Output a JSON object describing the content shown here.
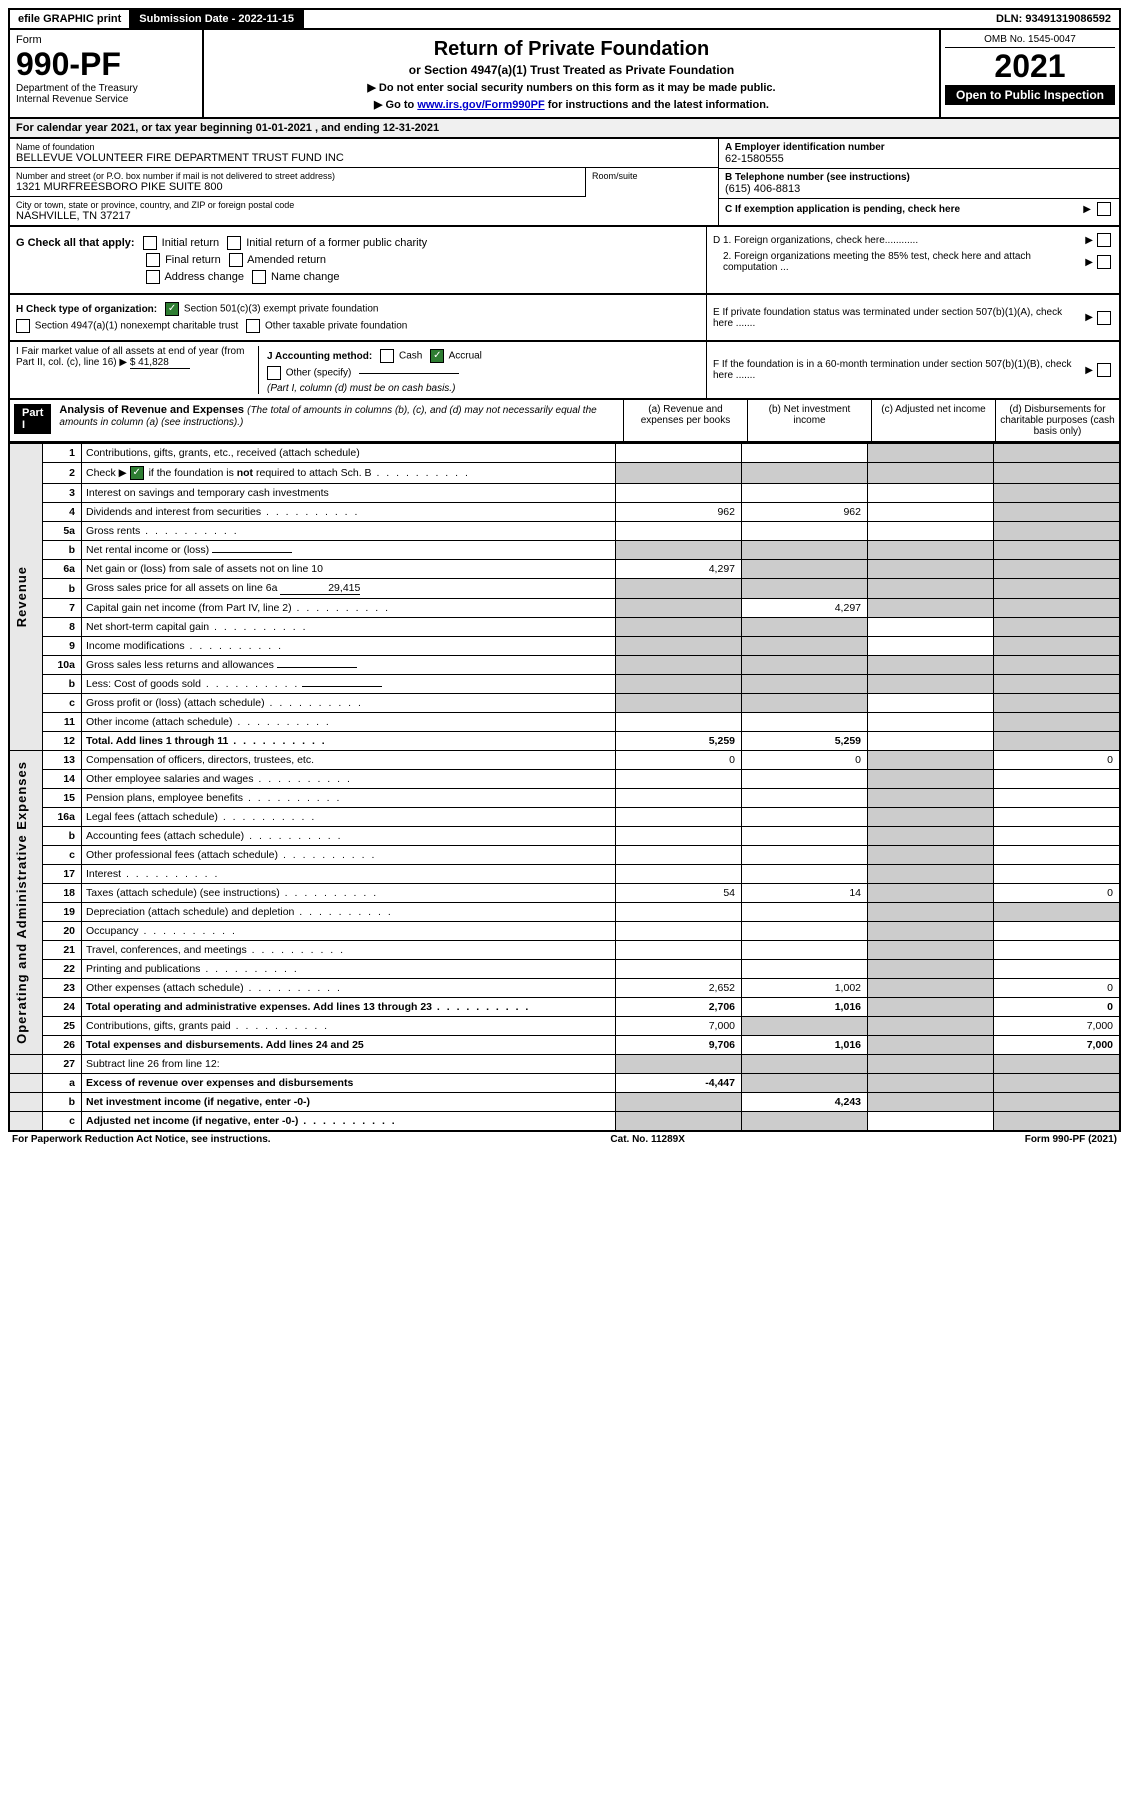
{
  "topbar": {
    "efile": "efile GRAPHIC print",
    "subdate_label": "Submission Date - ",
    "subdate": "2022-11-15",
    "dln_label": "DLN: ",
    "dln": "93491319086592"
  },
  "header": {
    "form_word": "Form",
    "form_num": "990-PF",
    "dept": "Department of the Treasury",
    "irs": "Internal Revenue Service",
    "title": "Return of Private Foundation",
    "subtitle": "or Section 4947(a)(1) Trust Treated as Private Foundation",
    "instr1": "▶ Do not enter social security numbers on this form as it may be made public.",
    "instr2_pre": "▶ Go to ",
    "instr2_link": "www.irs.gov/Form990PF",
    "instr2_post": " for instructions and the latest information.",
    "omb": "OMB No. 1545-0047",
    "year": "2021",
    "open": "Open to Public Inspection"
  },
  "calyear": "For calendar year 2021, or tax year beginning 01-01-2021                          , and ending 12-31-2021",
  "info": {
    "name_label": "Name of foundation",
    "name": "BELLEVUE VOLUNTEER FIRE DEPARTMENT TRUST FUND INC",
    "addr_label": "Number and street (or P.O. box number if mail is not delivered to street address)",
    "addr": "1321 MURFREESBORO PIKE SUITE 800",
    "room_label": "Room/suite",
    "city_label": "City or town, state or province, country, and ZIP or foreign postal code",
    "city": "NASHVILLE, TN  37217",
    "a_label": "A Employer identification number",
    "a_val": "62-1580555",
    "b_label": "B Telephone number (see instructions)",
    "b_val": "(615) 406-8813",
    "c_label": "C If exemption application is pending, check here",
    "d1": "D 1. Foreign organizations, check here............",
    "d2": "2. Foreign organizations meeting the 85% test, check here and attach computation ...",
    "e": "E  If private foundation status was terminated under section 507(b)(1)(A), check here .......",
    "f": "F  If the foundation is in a 60-month termination under section 507(b)(1)(B), check here ......."
  },
  "checks": {
    "g_label": "G Check all that apply:",
    "g_items": [
      "Initial return",
      "Initial return of a former public charity",
      "Final return",
      "Amended return",
      "Address change",
      "Name change"
    ],
    "h_label": "H Check type of organization:",
    "h1": "Section 501(c)(3) exempt private foundation",
    "h2": "Section 4947(a)(1) nonexempt charitable trust",
    "h3": "Other taxable private foundation",
    "i_label": "I Fair market value of all assets at end of year (from Part II, col. (c), line 16)",
    "i_val": "$  41,828",
    "j_label": "J Accounting method:",
    "j_cash": "Cash",
    "j_accrual": "Accrual",
    "j_other": "Other (specify)",
    "j_note": "(Part I, column (d) must be on cash basis.)"
  },
  "part1": {
    "label": "Part I",
    "title": "Analysis of Revenue and Expenses",
    "title_note": "(The total of amounts in columns (b), (c), and (d) may not necessarily equal the amounts in column (a) (see instructions).)",
    "col_a": "(a)  Revenue and expenses per books",
    "col_b": "(b)  Net investment income",
    "col_c": "(c)  Adjusted net income",
    "col_d": "(d)  Disbursements for charitable purposes (cash basis only)"
  },
  "sides": {
    "revenue": "Revenue",
    "expenses": "Operating and Administrative Expenses"
  },
  "rows": [
    {
      "n": "1",
      "t": "Contributions, gifts, grants, etc., received (attach schedule)",
      "a": "",
      "b": "",
      "c": "grey",
      "d": "grey"
    },
    {
      "n": "2",
      "t": "Check ▶ [✓] if the foundation is not required to attach Sch. B",
      "a": "grey",
      "b": "grey",
      "c": "grey",
      "d": "grey",
      "checked": true,
      "dots": true
    },
    {
      "n": "3",
      "t": "Interest on savings and temporary cash investments",
      "a": "",
      "b": "",
      "c": "",
      "d": "grey"
    },
    {
      "n": "4",
      "t": "Dividends and interest from securities",
      "a": "962",
      "b": "962",
      "c": "",
      "d": "grey",
      "dots": true
    },
    {
      "n": "5a",
      "t": "Gross rents",
      "a": "",
      "b": "",
      "c": "",
      "d": "grey",
      "dots": true
    },
    {
      "n": "b",
      "t": "Net rental income or (loss)",
      "a": "grey",
      "b": "grey",
      "c": "grey",
      "d": "grey",
      "inline": true
    },
    {
      "n": "6a",
      "t": "Net gain or (loss) from sale of assets not on line 10",
      "a": "4,297",
      "b": "grey",
      "c": "grey",
      "d": "grey"
    },
    {
      "n": "b",
      "t": "Gross sales price for all assets on line 6a",
      "a": "grey",
      "b": "grey",
      "c": "grey",
      "d": "grey",
      "inline": true,
      "inlineval": "29,415"
    },
    {
      "n": "7",
      "t": "Capital gain net income (from Part IV, line 2)",
      "a": "grey",
      "b": "4,297",
      "c": "grey",
      "d": "grey",
      "dots": true
    },
    {
      "n": "8",
      "t": "Net short-term capital gain",
      "a": "grey",
      "b": "grey",
      "c": "",
      "d": "grey",
      "dots": true
    },
    {
      "n": "9",
      "t": "Income modifications",
      "a": "grey",
      "b": "grey",
      "c": "",
      "d": "grey",
      "dots": true
    },
    {
      "n": "10a",
      "t": "Gross sales less returns and allowances",
      "a": "grey",
      "b": "grey",
      "c": "grey",
      "d": "grey",
      "inline": true
    },
    {
      "n": "b",
      "t": "Less: Cost of goods sold",
      "a": "grey",
      "b": "grey",
      "c": "grey",
      "d": "grey",
      "inline": true,
      "dots": true
    },
    {
      "n": "c",
      "t": "Gross profit or (loss) (attach schedule)",
      "a": "grey",
      "b": "grey",
      "c": "",
      "d": "grey",
      "dots": true
    },
    {
      "n": "11",
      "t": "Other income (attach schedule)",
      "a": "",
      "b": "",
      "c": "",
      "d": "grey",
      "dots": true
    },
    {
      "n": "12",
      "t": "Total. Add lines 1 through 11",
      "a": "5,259",
      "b": "5,259",
      "c": "",
      "d": "grey",
      "bold": true,
      "dots": true
    }
  ],
  "exp_rows": [
    {
      "n": "13",
      "t": "Compensation of officers, directors, trustees, etc.",
      "a": "0",
      "b": "0",
      "c": "grey",
      "d": "0"
    },
    {
      "n": "14",
      "t": "Other employee salaries and wages",
      "a": "",
      "b": "",
      "c": "grey",
      "d": "",
      "dots": true
    },
    {
      "n": "15",
      "t": "Pension plans, employee benefits",
      "a": "",
      "b": "",
      "c": "grey",
      "d": "",
      "dots": true
    },
    {
      "n": "16a",
      "t": "Legal fees (attach schedule)",
      "a": "",
      "b": "",
      "c": "grey",
      "d": "",
      "dots": true
    },
    {
      "n": "b",
      "t": "Accounting fees (attach schedule)",
      "a": "",
      "b": "",
      "c": "grey",
      "d": "",
      "dots": true
    },
    {
      "n": "c",
      "t": "Other professional fees (attach schedule)",
      "a": "",
      "b": "",
      "c": "grey",
      "d": "",
      "dots": true
    },
    {
      "n": "17",
      "t": "Interest",
      "a": "",
      "b": "",
      "c": "grey",
      "d": "",
      "dots": true
    },
    {
      "n": "18",
      "t": "Taxes (attach schedule) (see instructions)",
      "a": "54",
      "b": "14",
      "c": "grey",
      "d": "0",
      "dots": true
    },
    {
      "n": "19",
      "t": "Depreciation (attach schedule) and depletion",
      "a": "",
      "b": "",
      "c": "grey",
      "d": "grey",
      "dots": true
    },
    {
      "n": "20",
      "t": "Occupancy",
      "a": "",
      "b": "",
      "c": "grey",
      "d": "",
      "dots": true
    },
    {
      "n": "21",
      "t": "Travel, conferences, and meetings",
      "a": "",
      "b": "",
      "c": "grey",
      "d": "",
      "dots": true
    },
    {
      "n": "22",
      "t": "Printing and publications",
      "a": "",
      "b": "",
      "c": "grey",
      "d": "",
      "dots": true
    },
    {
      "n": "23",
      "t": "Other expenses (attach schedule)",
      "a": "2,652",
      "b": "1,002",
      "c": "grey",
      "d": "0",
      "dots": true
    },
    {
      "n": "24",
      "t": "Total operating and administrative expenses. Add lines 13 through 23",
      "a": "2,706",
      "b": "1,016",
      "c": "grey",
      "d": "0",
      "bold": true,
      "dots": true
    },
    {
      "n": "25",
      "t": "Contributions, gifts, grants paid",
      "a": "7,000",
      "b": "grey",
      "c": "grey",
      "d": "7,000",
      "dots": true
    },
    {
      "n": "26",
      "t": "Total expenses and disbursements. Add lines 24 and 25",
      "a": "9,706",
      "b": "1,016",
      "c": "grey",
      "d": "7,000",
      "bold": true
    }
  ],
  "bottom_rows": [
    {
      "n": "27",
      "t": "Subtract line 26 from line 12:",
      "a": "grey",
      "b": "grey",
      "c": "grey",
      "d": "grey"
    },
    {
      "n": "a",
      "t": "Excess of revenue over expenses and disbursements",
      "a": "-4,447",
      "b": "grey",
      "c": "grey",
      "d": "grey",
      "bold": true
    },
    {
      "n": "b",
      "t": "Net investment income (if negative, enter -0-)",
      "a": "grey",
      "b": "4,243",
      "c": "grey",
      "d": "grey",
      "bold": true
    },
    {
      "n": "c",
      "t": "Adjusted net income (if negative, enter -0-)",
      "a": "grey",
      "b": "grey",
      "c": "",
      "d": "grey",
      "bold": true,
      "dots": true
    }
  ],
  "footer": {
    "left": "For Paperwork Reduction Act Notice, see instructions.",
    "mid": "Cat. No. 11289X",
    "right": "Form 990-PF (2021)"
  }
}
